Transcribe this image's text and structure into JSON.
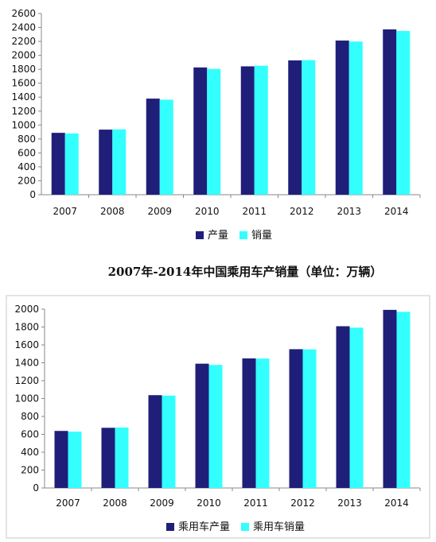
{
  "chart_data": [
    {
      "type": "bar",
      "title": "",
      "categories": [
        "2007",
        "2008",
        "2009",
        "2010",
        "2011",
        "2012",
        "2013",
        "2014"
      ],
      "series": [
        {
          "name": "产量",
          "color": "#1f1f7a",
          "values": [
            888,
            934,
            1379,
            1826,
            1842,
            1927,
            2212,
            2372
          ]
        },
        {
          "name": "销量",
          "color": "#33ffff",
          "values": [
            879,
            938,
            1364,
            1806,
            1851,
            1931,
            2198,
            2349
          ]
        }
      ],
      "ylim": [
        0,
        2600
      ],
      "yticks": [
        0,
        200,
        400,
        600,
        800,
        1000,
        1200,
        1400,
        1600,
        1800,
        2000,
        2200,
        2400,
        2600
      ],
      "legend_position": "bottom",
      "grid": false
    },
    {
      "type": "bar",
      "title": "2007年-2014年中国乘用车产销量（单位：万辆）",
      "categories": [
        "2007",
        "2008",
        "2009",
        "2010",
        "2011",
        "2012",
        "2013",
        "2014"
      ],
      "series": [
        {
          "name": "乘用车产量",
          "color": "#1f1f7a",
          "values": [
            638,
            673,
            1038,
            1390,
            1449,
            1552,
            1809,
            1992
          ]
        },
        {
          "name": "乘用车销量",
          "color": "#33ffff",
          "values": [
            630,
            676,
            1033,
            1376,
            1447,
            1550,
            1793,
            1970
          ]
        }
      ],
      "ylim": [
        0,
        2000
      ],
      "yticks": [
        0,
        200,
        400,
        600,
        800,
        1000,
        1200,
        1400,
        1600,
        1800,
        2000
      ],
      "legend_position": "bottom",
      "grid": false
    }
  ]
}
